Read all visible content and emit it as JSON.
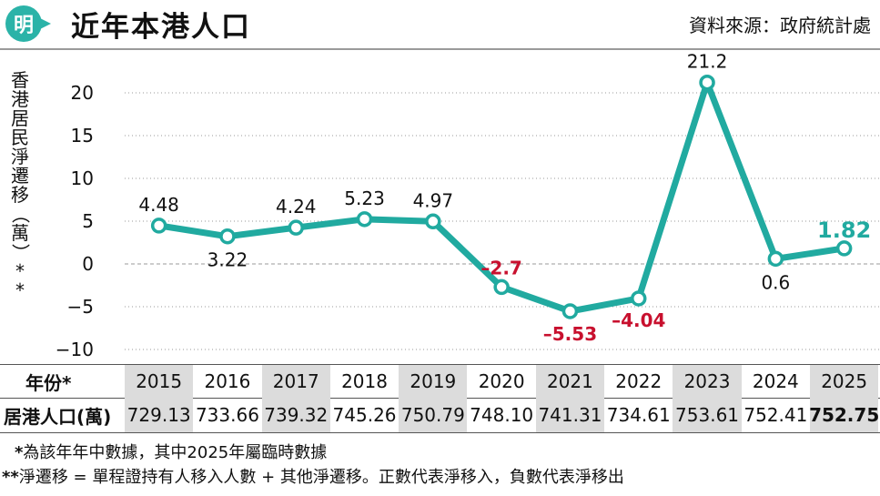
{
  "header": {
    "logo_text": "明",
    "title": "近年本港人口",
    "source": "資料來源：政府統計處"
  },
  "colors": {
    "line": "#21aaa0",
    "negative": "#c8102e",
    "shade": "#dcdcdc"
  },
  "chart_data": {
    "type": "line",
    "ylabel": "香港居民淨遷移（萬）**",
    "ylim": [
      -10,
      20
    ],
    "yticks": [
      20,
      15,
      10,
      5,
      0,
      -5,
      -10
    ],
    "x": [
      "2015",
      "2016",
      "2017",
      "2018",
      "2019",
      "2020",
      "2021",
      "2022",
      "2023",
      "2024",
      "2025"
    ],
    "series": [
      {
        "values": [
          4.48,
          3.22,
          4.24,
          5.23,
          4.97,
          -2.7,
          -5.53,
          -4.04,
          21.2,
          0.6,
          1.82
        ]
      }
    ],
    "data_labels": [
      "4.48",
      "3.22",
      "4.24",
      "5.23",
      "4.97",
      "–2.7",
      "–5.53",
      "–4.04",
      "21.2",
      "0.6",
      "1.82"
    ]
  },
  "table": {
    "year_label": "年份*",
    "population_label": "居港人口(萬)",
    "years": [
      "2015",
      "2016",
      "2017",
      "2018",
      "2019",
      "2020",
      "2021",
      "2022",
      "2023",
      "2024",
      "2025"
    ],
    "population": [
      "729.13",
      "733.66",
      "739.32",
      "745.26",
      "750.79",
      "748.10",
      "741.31",
      "734.61",
      "753.61",
      "752.41",
      "752.75"
    ]
  },
  "notes": {
    "note1_star": "*",
    "note1_text": "為該年年中數據，其中2025年屬臨時數據",
    "note2_star": "**",
    "note2_text": "淨遷移 = 單程證持有人移入人數 + 其他淨遷移。正數代表淨移入，負數代表淨移出"
  }
}
